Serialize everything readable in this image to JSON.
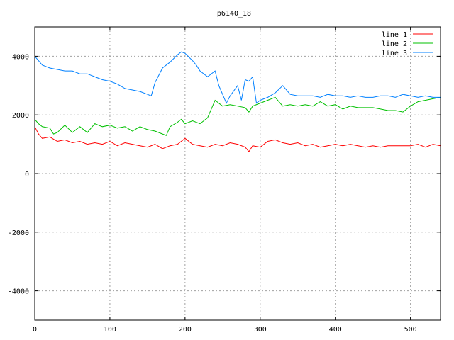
{
  "chart_data": {
    "type": "line",
    "title": "p6140_18",
    "xlabel": "",
    "ylabel": "",
    "xlim": [
      0,
      540
    ],
    "ylim": [
      -5000,
      5000
    ],
    "xticks": [
      0,
      100,
      200,
      300,
      400,
      500
    ],
    "yticks": [
      -4000,
      -2000,
      0,
      2000,
      4000
    ],
    "grid": true,
    "legend_position": "top-right",
    "series": [
      {
        "name": "line 1",
        "color": "#ff0000",
        "x": [
          0,
          5,
          10,
          20,
          30,
          40,
          50,
          60,
          70,
          80,
          90,
          100,
          110,
          120,
          130,
          140,
          150,
          160,
          170,
          180,
          190,
          200,
          210,
          220,
          230,
          240,
          250,
          260,
          270,
          280,
          285,
          290,
          300,
          310,
          320,
          330,
          340,
          350,
          360,
          370,
          380,
          390,
          400,
          410,
          420,
          430,
          440,
          450,
          460,
          470,
          480,
          490,
          500,
          510,
          520,
          530,
          540
        ],
        "values": [
          1600,
          1350,
          1200,
          1250,
          1100,
          1150,
          1050,
          1100,
          1000,
          1050,
          1000,
          1100,
          950,
          1050,
          1000,
          950,
          900,
          1000,
          850,
          950,
          1000,
          1200,
          1000,
          950,
          900,
          1000,
          950,
          1050,
          1000,
          900,
          750,
          950,
          900,
          1100,
          1150,
          1050,
          1000,
          1050,
          950,
          1000,
          900,
          950,
          1000,
          950,
          1000,
          950,
          900,
          950,
          900,
          950,
          950,
          950,
          950,
          1000,
          900,
          1000,
          950
        ]
      },
      {
        "name": "line 2",
        "color": "#00c000",
        "x": [
          0,
          5,
          10,
          20,
          25,
          30,
          40,
          50,
          60,
          70,
          80,
          90,
          100,
          110,
          120,
          130,
          140,
          150,
          160,
          170,
          175,
          180,
          190,
          195,
          200,
          210,
          220,
          230,
          240,
          250,
          260,
          270,
          280,
          285,
          290,
          300,
          310,
          320,
          330,
          340,
          350,
          360,
          370,
          380,
          390,
          400,
          410,
          420,
          430,
          440,
          450,
          460,
          470,
          480,
          490,
          500,
          510,
          520,
          530,
          540
        ],
        "values": [
          1850,
          1700,
          1600,
          1550,
          1350,
          1400,
          1650,
          1400,
          1600,
          1400,
          1700,
          1600,
          1650,
          1550,
          1600,
          1450,
          1600,
          1500,
          1450,
          1350,
          1300,
          1600,
          1750,
          1850,
          1700,
          1800,
          1700,
          1900,
          2500,
          2300,
          2350,
          2300,
          2250,
          2100,
          2300,
          2400,
          2500,
          2600,
          2300,
          2350,
          2300,
          2350,
          2300,
          2450,
          2300,
          2350,
          2200,
          2300,
          2250,
          2250,
          2250,
          2200,
          2150,
          2150,
          2100,
          2300,
          2450,
          2500,
          2550,
          2600
        ]
      },
      {
        "name": "line 3",
        "color": "#0080ff",
        "x": [
          0,
          5,
          10,
          20,
          30,
          40,
          50,
          60,
          70,
          80,
          90,
          100,
          110,
          120,
          130,
          140,
          150,
          155,
          160,
          170,
          180,
          190,
          195,
          200,
          210,
          215,
          220,
          230,
          240,
          245,
          250,
          255,
          260,
          270,
          275,
          280,
          285,
          290,
          295,
          300,
          310,
          320,
          330,
          340,
          350,
          360,
          370,
          380,
          390,
          400,
          410,
          420,
          430,
          440,
          450,
          460,
          470,
          480,
          490,
          500,
          510,
          520,
          530,
          540
        ],
        "values": [
          4000,
          3850,
          3700,
          3600,
          3550,
          3500,
          3500,
          3400,
          3400,
          3300,
          3200,
          3150,
          3050,
          2900,
          2850,
          2800,
          2700,
          2650,
          3100,
          3600,
          3800,
          4050,
          4150,
          4100,
          3850,
          3700,
          3500,
          3300,
          3500,
          3000,
          2700,
          2400,
          2650,
          3000,
          2500,
          3200,
          3150,
          3300,
          2400,
          2500,
          2600,
          2750,
          3000,
          2700,
          2650,
          2650,
          2650,
          2600,
          2700,
          2650,
          2650,
          2600,
          2650,
          2600,
          2600,
          2650,
          2650,
          2600,
          2700,
          2650,
          2600,
          2650,
          2600,
          2600
        ]
      }
    ]
  }
}
